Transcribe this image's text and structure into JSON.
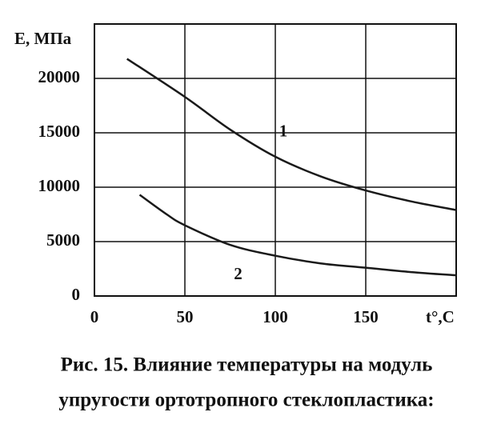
{
  "chart_data": {
    "type": "line",
    "y_label": "E, МПа",
    "x_label": "t°,C",
    "caption": [
      "Рис. 15. Влияние температуры на модуль",
      "упругости ортотропного стеклопластика:"
    ],
    "xlim": [
      0,
      200
    ],
    "xticks": [
      0,
      50,
      100,
      150
    ],
    "ylim": [
      0,
      25000
    ],
    "yticks": [
      0,
      5000,
      10000,
      15000,
      20000
    ],
    "grid": true,
    "series": [
      {
        "name": "1",
        "color": "#1a1a1a",
        "x": [
          18,
          50,
          75,
          100,
          125,
          150,
          175,
          200
        ],
        "values": [
          21800,
          18300,
          15300,
          12800,
          11000,
          9700,
          8700,
          7900
        ]
      },
      {
        "name": "2",
        "color": "#1a1a1a",
        "x": [
          25,
          40,
          50,
          75,
          100,
          125,
          150,
          175,
          200
        ],
        "values": [
          9300,
          7500,
          6500,
          4700,
          3700,
          3000,
          2600,
          2200,
          1900
        ]
      }
    ]
  }
}
